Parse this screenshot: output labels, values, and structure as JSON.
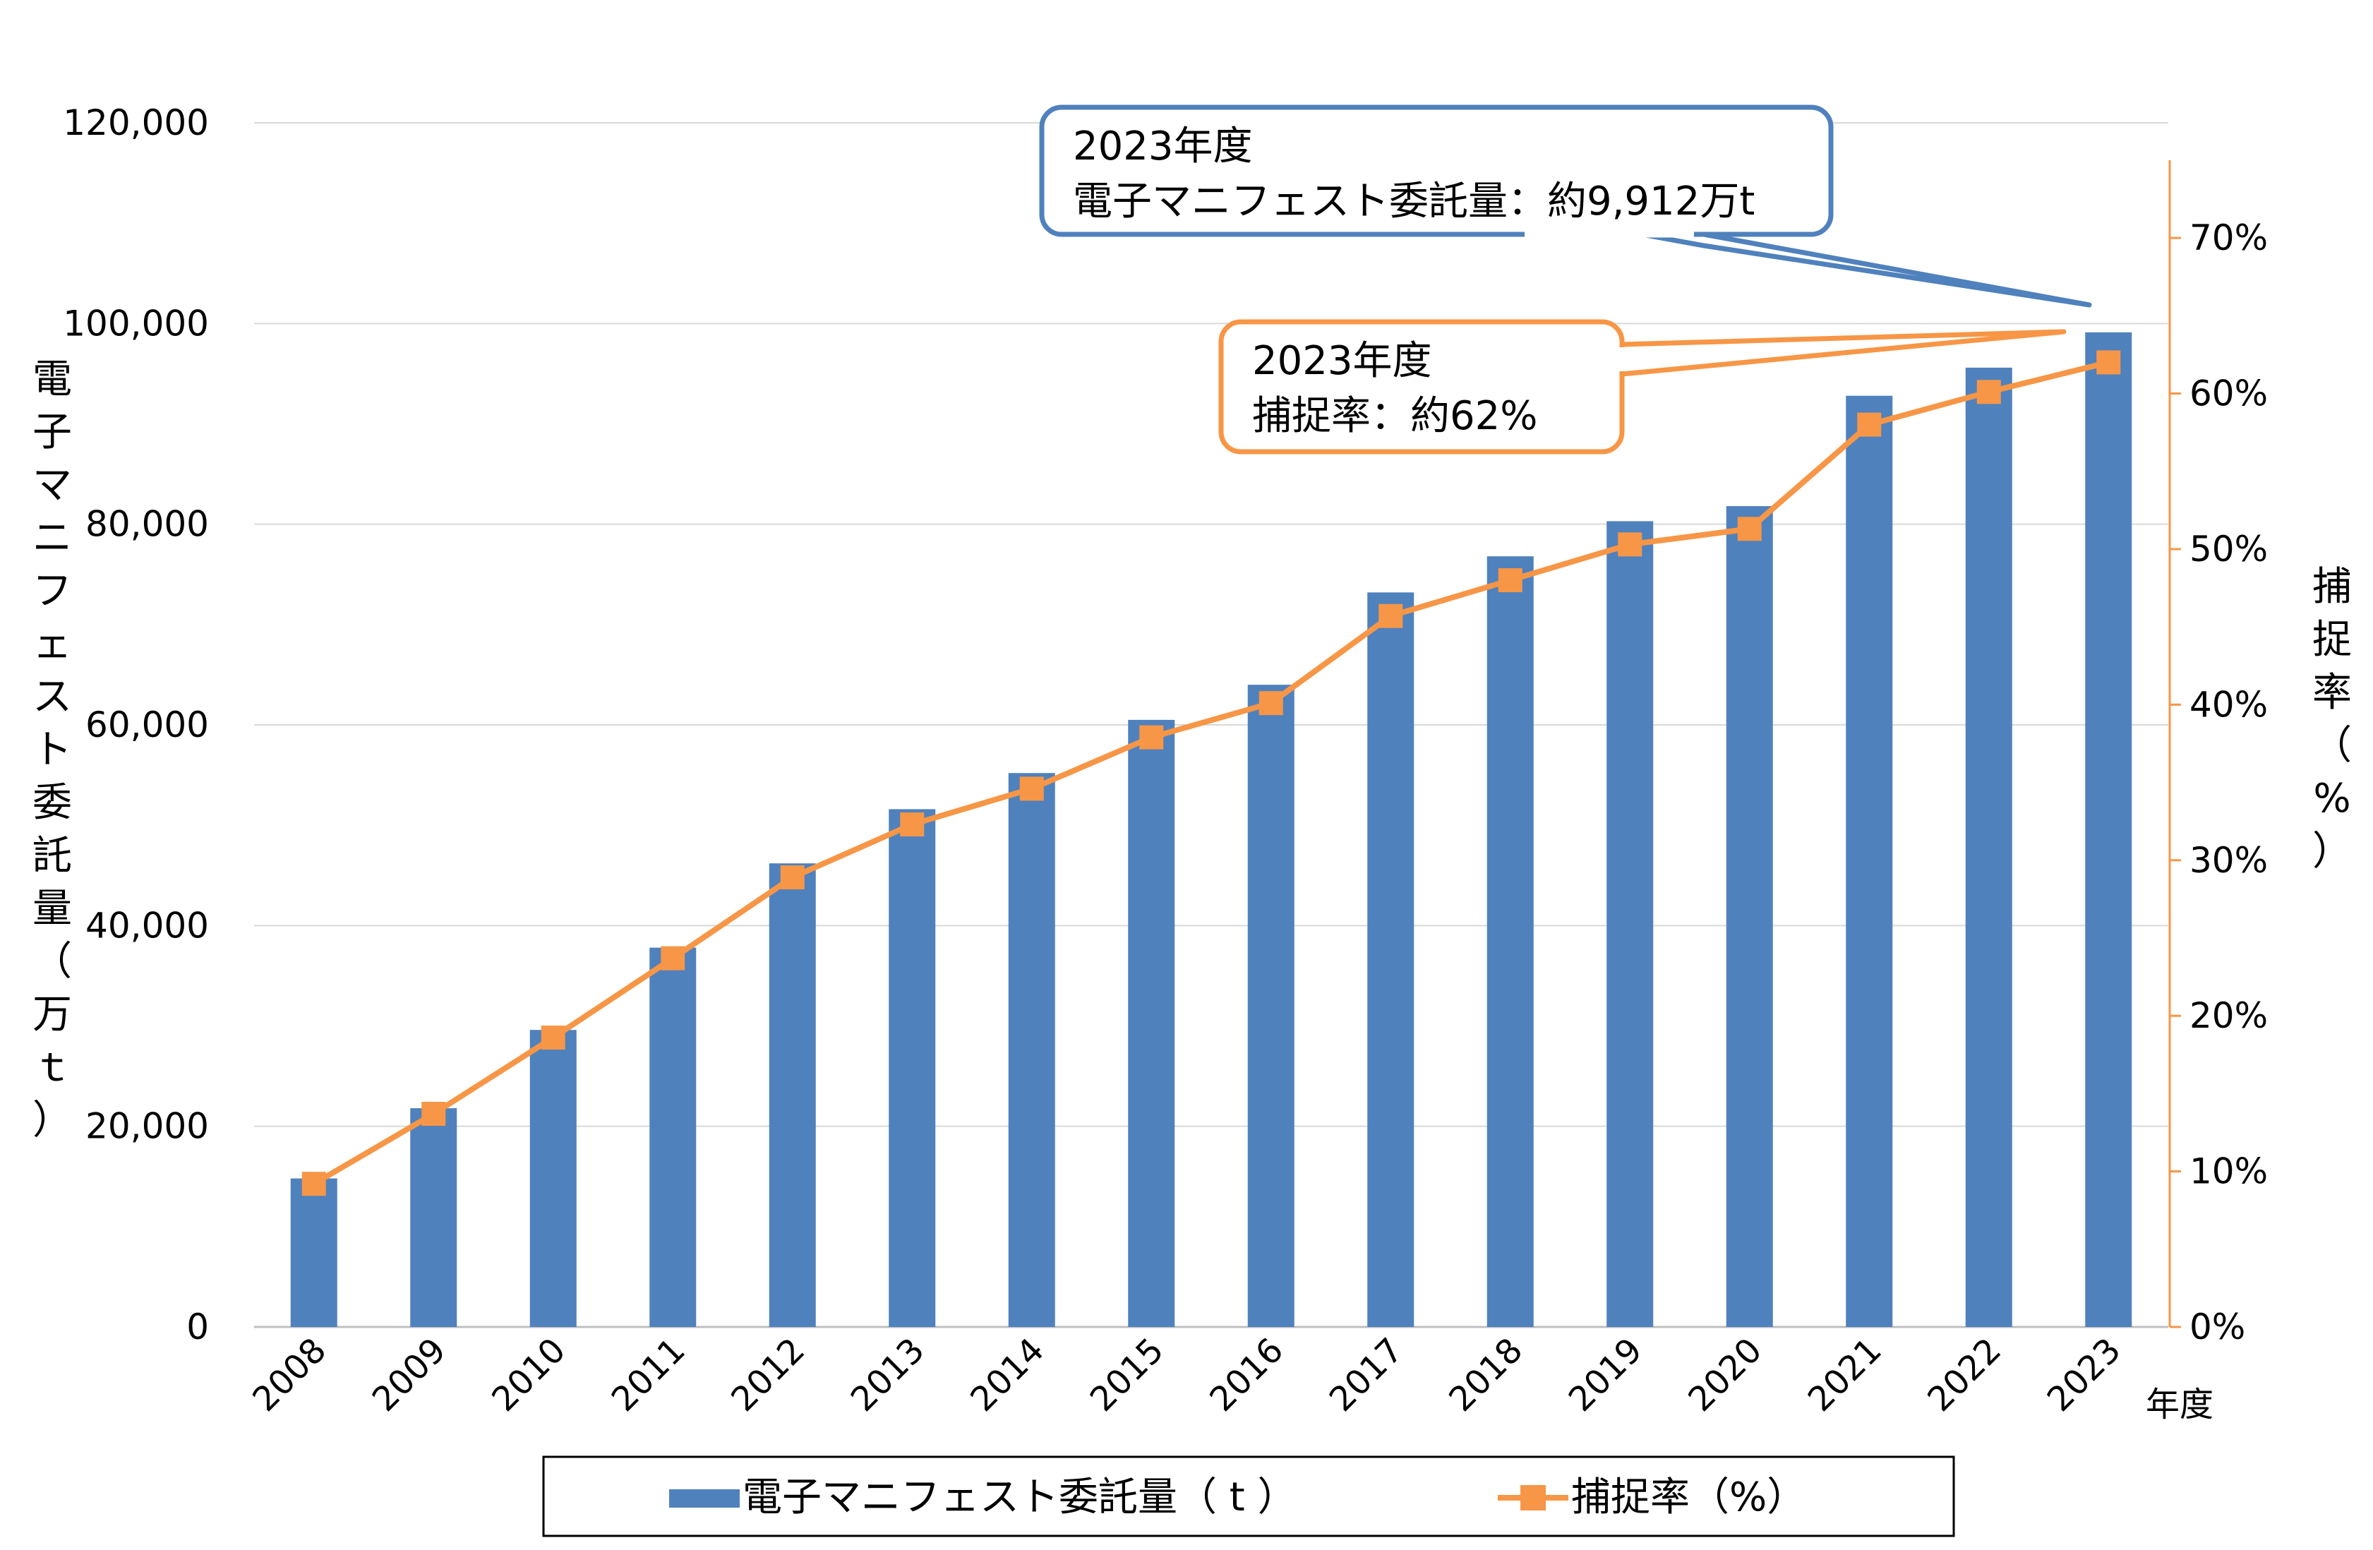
{
  "chart_data": {
    "type": "bar",
    "categories": [
      "2008",
      "2009",
      "2010",
      "2011",
      "2012",
      "2013",
      "2014",
      "2015",
      "2016",
      "2017",
      "2018",
      "2019",
      "2020",
      "2021",
      "2022",
      "2023"
    ],
    "series": [
      {
        "name": "電子マニフェスト委託量（ t ）",
        "type": "bar",
        "axis": "left",
        "color": "#4F81BD",
        "values": [
          14800,
          21800,
          29600,
          37800,
          46200,
          51600,
          55200,
          60500,
          64000,
          73200,
          76800,
          80300,
          81800,
          92800,
          95600,
          99120
        ]
      },
      {
        "name": "捕捉率（%）",
        "type": "line",
        "axis": "right",
        "color": "#F79646",
        "values": [
          9.2,
          13.7,
          18.6,
          23.7,
          28.9,
          32.3,
          34.6,
          37.9,
          40.1,
          45.7,
          48.0,
          50.3,
          51.3,
          58.0,
          60.1,
          62.0
        ]
      }
    ],
    "y_left": {
      "label": "電子マニフェスト委託量（万ｔ）",
      "ticks": [
        "0",
        "20,000",
        "40,000",
        "60,000",
        "80,000",
        "100,000",
        "120,000"
      ],
      "range": [
        0,
        120000
      ]
    },
    "y_right": {
      "label": "捕捉率（%）",
      "ticks": [
        "0%",
        "10%",
        "20%",
        "30%",
        "40%",
        "50%",
        "60%",
        "70%"
      ],
      "range": [
        0,
        75
      ]
    },
    "x_unit": "年度",
    "grid": true,
    "legend_position": "bottom",
    "legend": {
      "bar_label": "電子マニフェスト委託量（ t ）",
      "line_label": "捕捉率（%）"
    },
    "annotations": {
      "amount": {
        "line1": "2023年度",
        "line2": "電子マニフェスト委託量：約9,912万t"
      },
      "rate": {
        "line1": "2023年度",
        "line2": "捕捉率：約62%"
      }
    }
  }
}
